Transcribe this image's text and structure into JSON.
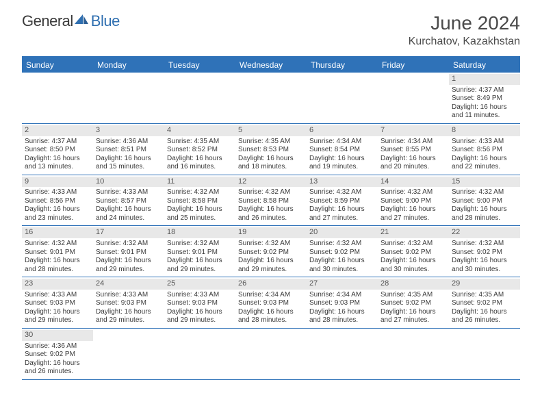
{
  "brand": {
    "part1": "General",
    "part2": "Blue"
  },
  "title": "June 2024",
  "location": "Kurchatov, Kazakhstan",
  "colors": {
    "header_bg": "#2f72b8",
    "header_text": "#ffffff",
    "date_bg": "#e8e8e8",
    "text": "#3a3a3a",
    "brand_gray": "#3a3a3a",
    "brand_blue": "#2f6fb0"
  },
  "day_names": [
    "Sunday",
    "Monday",
    "Tuesday",
    "Wednesday",
    "Thursday",
    "Friday",
    "Saturday"
  ],
  "weeks": [
    [
      null,
      null,
      null,
      null,
      null,
      null,
      {
        "d": "1",
        "sr": "4:37 AM",
        "ss": "8:49 PM",
        "dl": "16 hours and 11 minutes."
      }
    ],
    [
      {
        "d": "2",
        "sr": "4:37 AM",
        "ss": "8:50 PM",
        "dl": "16 hours and 13 minutes."
      },
      {
        "d": "3",
        "sr": "4:36 AM",
        "ss": "8:51 PM",
        "dl": "16 hours and 15 minutes."
      },
      {
        "d": "4",
        "sr": "4:35 AM",
        "ss": "8:52 PM",
        "dl": "16 hours and 16 minutes."
      },
      {
        "d": "5",
        "sr": "4:35 AM",
        "ss": "8:53 PM",
        "dl": "16 hours and 18 minutes."
      },
      {
        "d": "6",
        "sr": "4:34 AM",
        "ss": "8:54 PM",
        "dl": "16 hours and 19 minutes."
      },
      {
        "d": "7",
        "sr": "4:34 AM",
        "ss": "8:55 PM",
        "dl": "16 hours and 20 minutes."
      },
      {
        "d": "8",
        "sr": "4:33 AM",
        "ss": "8:56 PM",
        "dl": "16 hours and 22 minutes."
      }
    ],
    [
      {
        "d": "9",
        "sr": "4:33 AM",
        "ss": "8:56 PM",
        "dl": "16 hours and 23 minutes."
      },
      {
        "d": "10",
        "sr": "4:33 AM",
        "ss": "8:57 PM",
        "dl": "16 hours and 24 minutes."
      },
      {
        "d": "11",
        "sr": "4:32 AM",
        "ss": "8:58 PM",
        "dl": "16 hours and 25 minutes."
      },
      {
        "d": "12",
        "sr": "4:32 AM",
        "ss": "8:58 PM",
        "dl": "16 hours and 26 minutes."
      },
      {
        "d": "13",
        "sr": "4:32 AM",
        "ss": "8:59 PM",
        "dl": "16 hours and 27 minutes."
      },
      {
        "d": "14",
        "sr": "4:32 AM",
        "ss": "9:00 PM",
        "dl": "16 hours and 27 minutes."
      },
      {
        "d": "15",
        "sr": "4:32 AM",
        "ss": "9:00 PM",
        "dl": "16 hours and 28 minutes."
      }
    ],
    [
      {
        "d": "16",
        "sr": "4:32 AM",
        "ss": "9:01 PM",
        "dl": "16 hours and 28 minutes."
      },
      {
        "d": "17",
        "sr": "4:32 AM",
        "ss": "9:01 PM",
        "dl": "16 hours and 29 minutes."
      },
      {
        "d": "18",
        "sr": "4:32 AM",
        "ss": "9:01 PM",
        "dl": "16 hours and 29 minutes."
      },
      {
        "d": "19",
        "sr": "4:32 AM",
        "ss": "9:02 PM",
        "dl": "16 hours and 29 minutes."
      },
      {
        "d": "20",
        "sr": "4:32 AM",
        "ss": "9:02 PM",
        "dl": "16 hours and 30 minutes."
      },
      {
        "d": "21",
        "sr": "4:32 AM",
        "ss": "9:02 PM",
        "dl": "16 hours and 30 minutes."
      },
      {
        "d": "22",
        "sr": "4:32 AM",
        "ss": "9:02 PM",
        "dl": "16 hours and 30 minutes."
      }
    ],
    [
      {
        "d": "23",
        "sr": "4:33 AM",
        "ss": "9:03 PM",
        "dl": "16 hours and 29 minutes."
      },
      {
        "d": "24",
        "sr": "4:33 AM",
        "ss": "9:03 PM",
        "dl": "16 hours and 29 minutes."
      },
      {
        "d": "25",
        "sr": "4:33 AM",
        "ss": "9:03 PM",
        "dl": "16 hours and 29 minutes."
      },
      {
        "d": "26",
        "sr": "4:34 AM",
        "ss": "9:03 PM",
        "dl": "16 hours and 28 minutes."
      },
      {
        "d": "27",
        "sr": "4:34 AM",
        "ss": "9:03 PM",
        "dl": "16 hours and 28 minutes."
      },
      {
        "d": "28",
        "sr": "4:35 AM",
        "ss": "9:02 PM",
        "dl": "16 hours and 27 minutes."
      },
      {
        "d": "29",
        "sr": "4:35 AM",
        "ss": "9:02 PM",
        "dl": "16 hours and 26 minutes."
      }
    ],
    [
      {
        "d": "30",
        "sr": "4:36 AM",
        "ss": "9:02 PM",
        "dl": "16 hours and 26 minutes."
      },
      null,
      null,
      null,
      null,
      null,
      null
    ]
  ],
  "labels": {
    "sunrise": "Sunrise:",
    "sunset": "Sunset:",
    "daylight": "Daylight:"
  }
}
